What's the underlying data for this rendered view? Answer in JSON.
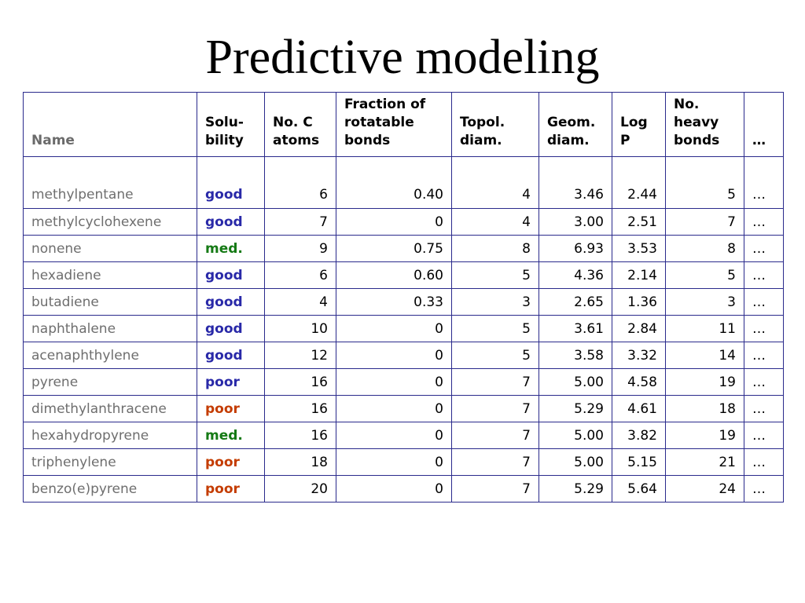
{
  "title": "Predictive modeling",
  "colors": {
    "good": "#2929a8",
    "med": "#157a15",
    "poor_orange": "#c43c00",
    "poor_blue": "#2929a8",
    "grid": "#2a2a8c"
  },
  "table": {
    "headers": {
      "name": "Name",
      "solubility_1": "Solu-",
      "solubility_2": "bility",
      "carbon_1": "No. C",
      "carbon_2": "atoms",
      "rot_1": "Fraction of",
      "rot_2": "rotatable",
      "rot_3": "bonds",
      "topo_1": "Topol.",
      "topo_2": "diam.",
      "geom_1": "Geom.",
      "geom_2": "diam.",
      "logp_1": "Log",
      "logp_2": "P",
      "heavy_1": "No.",
      "heavy_2": "heavy",
      "heavy_3": "bonds",
      "more": "…"
    },
    "rows": [
      {
        "name": "methylpentane",
        "sol": "good",
        "solClass": "good",
        "c": "6",
        "rot": "0.40",
        "topo": "4",
        "geom": "3.46",
        "logp": "2.44",
        "heavy": "5",
        "more": "…"
      },
      {
        "name": "methylcyclohexene",
        "sol": "good",
        "solClass": "good",
        "c": "7",
        "rot": "0",
        "topo": "4",
        "geom": "3.00",
        "logp": "2.51",
        "heavy": "7",
        "more": "…"
      },
      {
        "name": "nonene",
        "sol": "med.",
        "solClass": "med",
        "c": "9",
        "rot": "0.75",
        "topo": "8",
        "geom": "6.93",
        "logp": "3.53",
        "heavy": "8",
        "more": "…"
      },
      {
        "name": "hexadiene",
        "sol": "good",
        "solClass": "good",
        "c": "6",
        "rot": "0.60",
        "topo": "5",
        "geom": "4.36",
        "logp": "2.14",
        "heavy": "5",
        "more": "…"
      },
      {
        "name": "butadiene",
        "sol": "good",
        "solClass": "good",
        "c": "4",
        "rot": "0.33",
        "topo": "3",
        "geom": "2.65",
        "logp": "1.36",
        "heavy": "3",
        "more": "…"
      },
      {
        "name": "naphthalene",
        "sol": "good",
        "solClass": "good",
        "c": "10",
        "rot": "0",
        "topo": "5",
        "geom": "3.61",
        "logp": "2.84",
        "heavy": "11",
        "more": "…"
      },
      {
        "name": "acenaphthylene",
        "sol": "good",
        "solClass": "good",
        "c": "12",
        "rot": "0",
        "topo": "5",
        "geom": "3.58",
        "logp": "3.32",
        "heavy": "14",
        "more": "…"
      },
      {
        "name": "pyrene",
        "sol": "poor",
        "solClass": "poor_blue",
        "c": "16",
        "rot": "0",
        "topo": "7",
        "geom": "5.00",
        "logp": "4.58",
        "heavy": "19",
        "more": "…"
      },
      {
        "name": "dimethylanthracene",
        "sol": "poor",
        "solClass": "poor_orange",
        "c": "16",
        "rot": "0",
        "topo": "7",
        "geom": "5.29",
        "logp": "4.61",
        "heavy": "18",
        "more": "…"
      },
      {
        "name": "hexahydropyrene",
        "sol": "med.",
        "solClass": "med",
        "c": "16",
        "rot": "0",
        "topo": "7",
        "geom": "5.00",
        "logp": "3.82",
        "heavy": "19",
        "more": "…"
      },
      {
        "name": "triphenylene",
        "sol": "poor",
        "solClass": "poor_orange",
        "c": "18",
        "rot": "0",
        "topo": "7",
        "geom": "5.00",
        "logp": "5.15",
        "heavy": "21",
        "more": "…"
      },
      {
        "name": "benzo(e)pyrene",
        "sol": "poor",
        "solClass": "poor_orange",
        "c": "20",
        "rot": "0",
        "topo": "7",
        "geom": "5.29",
        "logp": "5.64",
        "heavy": "24",
        "more": "…"
      }
    ]
  }
}
